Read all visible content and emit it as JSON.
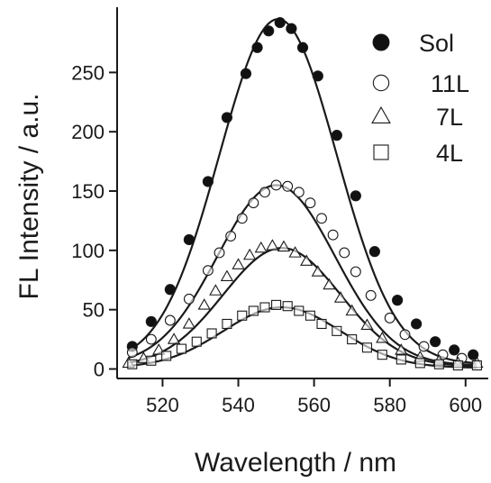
{
  "chart_data": {
    "type": "scatter",
    "title": "",
    "xlabel": "Wavelength / nm",
    "ylabel": "FL Intensity / a.u.",
    "xlim": [
      508,
      606
    ],
    "ylim": [
      -8,
      305
    ],
    "x_ticks": [
      520,
      540,
      560,
      580,
      600
    ],
    "y_ticks": [
      0,
      50,
      100,
      150,
      200,
      250
    ],
    "grid": false,
    "legend_position": "top-right",
    "colors": {
      "ink": "#1a1a1a",
      "open_fill": "#ffffff",
      "solid_fill": "#111111"
    },
    "series": [
      {
        "name": "Sol",
        "marker": "filled-circle",
        "x": [
          512,
          517,
          522,
          527,
          532,
          537,
          542,
          545,
          548,
          551,
          554,
          557,
          561,
          566,
          571,
          576,
          582,
          587,
          592,
          597,
          602
        ],
        "y": [
          19,
          40,
          67,
          109,
          158,
          212,
          249,
          271,
          285,
          292,
          287,
          271,
          247,
          197,
          146,
          99,
          58,
          38,
          23,
          16,
          12
        ],
        "fit": {
          "amplitude": 291,
          "center": 550.5,
          "sigma": 15.5,
          "baseline": 4
        }
      },
      {
        "name": "11L",
        "marker": "open-circle",
        "x": [
          512,
          517,
          522,
          527,
          532,
          535,
          538,
          541,
          544,
          547,
          550,
          553,
          556,
          559,
          562,
          565,
          568,
          571,
          575,
          580,
          584,
          589,
          594,
          599
        ],
        "y": [
          14,
          25,
          41,
          59,
          83,
          98,
          112,
          127,
          140,
          149,
          155,
          154,
          149,
          140,
          127,
          113,
          98,
          82,
          62,
          43,
          29,
          19,
          12,
          9
        ],
        "fit": {
          "amplitude": 152,
          "center": 550,
          "sigma": 15.5,
          "baseline": 3
        }
      },
      {
        "name": "7L",
        "marker": "open-triangle",
        "x": [
          511,
          515,
          519,
          523,
          527,
          531,
          534,
          537,
          540,
          543,
          546,
          549,
          552,
          555,
          558,
          561,
          564,
          567,
          570,
          574,
          578,
          583,
          588,
          593,
          598,
          603
        ],
        "y": [
          5,
          9,
          16,
          25,
          38,
          54,
          66,
          78,
          88,
          96,
          102,
          104,
          103,
          98,
          91,
          82,
          71,
          60,
          49,
          37,
          26,
          16,
          10,
          7,
          5,
          5
        ],
        "fit": {
          "amplitude": 100,
          "center": 551.5,
          "sigma": 15.5,
          "baseline": 2
        }
      },
      {
        "name": "4L",
        "marker": "open-square",
        "x": [
          512,
          517,
          521,
          525,
          529,
          533,
          537,
          541,
          544,
          547,
          550,
          553,
          556,
          559,
          562,
          566,
          570,
          574,
          578,
          583,
          588,
          593,
          598,
          603
        ],
        "y": [
          4,
          7,
          11,
          17,
          23,
          30,
          38,
          45,
          49,
          52,
          54,
          53,
          49,
          45,
          38,
          32,
          25,
          18,
          12,
          8,
          5,
          4,
          3,
          3
        ],
        "fit": {
          "amplitude": 51,
          "center": 551.5,
          "sigma": 15.5,
          "baseline": 1
        }
      }
    ]
  }
}
